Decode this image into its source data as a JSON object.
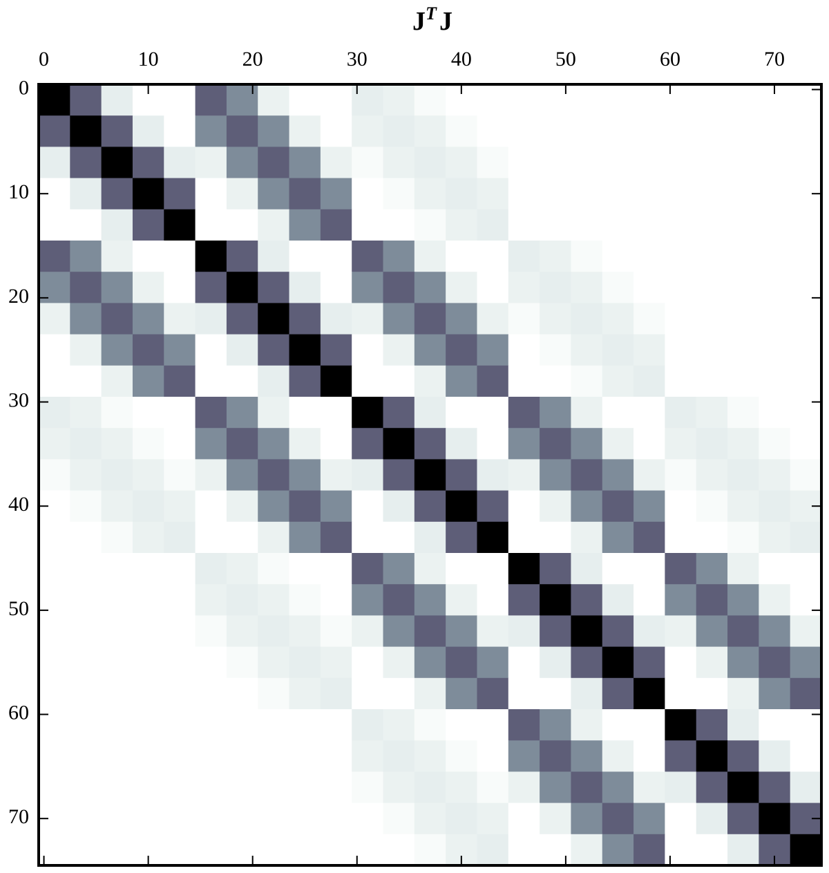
{
  "chart_data": {
    "type": "heatmap",
    "title_parts": [
      "J",
      "T",
      "J"
    ],
    "xlim": [
      -0.5,
      74.5
    ],
    "ylim": [
      -0.5,
      74.5
    ],
    "xticks": [
      0,
      10,
      20,
      30,
      40,
      50,
      60,
      70
    ],
    "yticks": [
      0,
      10,
      20,
      30,
      40,
      50,
      60,
      70
    ],
    "cell_size": 3,
    "zlim": [
      0,
      1
    ],
    "colormap": [
      "#ffffff",
      "#d6e3e2",
      "#7e8c9a",
      "#56536f",
      "#000000"
    ],
    "z": [
      [
        1,
        0.7,
        0.15,
        0,
        0,
        0.7,
        0.5,
        0.12,
        0,
        0,
        0.15,
        0.12,
        0.04,
        0,
        0,
        0,
        0,
        0,
        0,
        0,
        0,
        0,
        0,
        0,
        0
      ],
      [
        0.7,
        1,
        0.7,
        0.15,
        0,
        0.5,
        0.7,
        0.5,
        0.12,
        0,
        0.12,
        0.15,
        0.12,
        0.04,
        0,
        0,
        0,
        0,
        0,
        0,
        0,
        0,
        0,
        0,
        0
      ],
      [
        0.15,
        0.7,
        1,
        0.7,
        0.15,
        0.12,
        0.5,
        0.7,
        0.5,
        0.12,
        0.04,
        0.12,
        0.15,
        0.12,
        0.04,
        0,
        0,
        0,
        0,
        0,
        0,
        0,
        0,
        0,
        0
      ],
      [
        0,
        0.15,
        0.7,
        1,
        0.7,
        0,
        0.12,
        0.5,
        0.7,
        0.5,
        0,
        0.04,
        0.12,
        0.15,
        0.12,
        0,
        0,
        0,
        0,
        0,
        0,
        0,
        0,
        0,
        0
      ],
      [
        0,
        0,
        0.15,
        0.7,
        1,
        0,
        0,
        0.12,
        0.5,
        0.7,
        0,
        0,
        0.04,
        0.12,
        0.15,
        0,
        0,
        0,
        0,
        0,
        0,
        0,
        0,
        0,
        0
      ],
      [
        0.7,
        0.5,
        0.12,
        0,
        0,
        1,
        0.7,
        0.15,
        0,
        0,
        0.7,
        0.5,
        0.12,
        0,
        0,
        0.15,
        0.12,
        0.04,
        0,
        0,
        0,
        0,
        0,
        0,
        0
      ],
      [
        0.5,
        0.7,
        0.5,
        0.12,
        0,
        0.7,
        1,
        0.7,
        0.15,
        0,
        0.5,
        0.7,
        0.5,
        0.12,
        0,
        0.12,
        0.15,
        0.12,
        0.04,
        0,
        0,
        0,
        0,
        0,
        0
      ],
      [
        0.12,
        0.5,
        0.7,
        0.5,
        0.12,
        0.15,
        0.7,
        1,
        0.7,
        0.15,
        0.12,
        0.5,
        0.7,
        0.5,
        0.12,
        0.04,
        0.12,
        0.15,
        0.12,
        0.04,
        0,
        0,
        0,
        0,
        0
      ],
      [
        0,
        0.12,
        0.5,
        0.7,
        0.5,
        0,
        0.15,
        0.7,
        1,
        0.7,
        0,
        0.12,
        0.5,
        0.7,
        0.5,
        0,
        0.04,
        0.12,
        0.15,
        0.12,
        0,
        0,
        0,
        0,
        0
      ],
      [
        0,
        0,
        0.12,
        0.5,
        0.7,
        0,
        0,
        0.15,
        0.7,
        1,
        0,
        0,
        0.12,
        0.5,
        0.7,
        0,
        0,
        0.04,
        0.12,
        0.15,
        0,
        0,
        0,
        0,
        0
      ],
      [
        0.15,
        0.12,
        0.04,
        0,
        0,
        0.7,
        0.5,
        0.12,
        0,
        0,
        1,
        0.7,
        0.15,
        0,
        0,
        0.7,
        0.5,
        0.12,
        0,
        0,
        0.15,
        0.12,
        0.04,
        0,
        0
      ],
      [
        0.12,
        0.15,
        0.12,
        0.04,
        0,
        0.5,
        0.7,
        0.5,
        0.12,
        0,
        0.7,
        1,
        0.7,
        0.15,
        0,
        0.5,
        0.7,
        0.5,
        0.12,
        0,
        0.12,
        0.15,
        0.12,
        0.04,
        0
      ],
      [
        0.04,
        0.12,
        0.15,
        0.12,
        0.04,
        0.12,
        0.5,
        0.7,
        0.5,
        0.12,
        0.15,
        0.7,
        1,
        0.7,
        0.15,
        0.12,
        0.5,
        0.7,
        0.5,
        0.12,
        0.04,
        0.12,
        0.15,
        0.12,
        0.04
      ],
      [
        0,
        0.04,
        0.12,
        0.15,
        0.12,
        0,
        0.12,
        0.5,
        0.7,
        0.5,
        0,
        0.15,
        0.7,
        1,
        0.7,
        0,
        0.12,
        0.5,
        0.7,
        0.5,
        0,
        0.04,
        0.12,
        0.15,
        0.12
      ],
      [
        0,
        0,
        0.04,
        0.12,
        0.15,
        0,
        0,
        0.12,
        0.5,
        0.7,
        0,
        0,
        0.15,
        0.7,
        1,
        0,
        0,
        0.12,
        0.5,
        0.7,
        0,
        0,
        0.04,
        0.12,
        0.15
      ],
      [
        0,
        0,
        0,
        0,
        0,
        0.15,
        0.12,
        0.04,
        0,
        0,
        0.7,
        0.5,
        0.12,
        0,
        0,
        1,
        0.7,
        0.15,
        0,
        0,
        0.7,
        0.5,
        0.12,
        0,
        0
      ],
      [
        0,
        0,
        0,
        0,
        0,
        0.12,
        0.15,
        0.12,
        0.04,
        0,
        0.5,
        0.7,
        0.5,
        0.12,
        0,
        0.7,
        1,
        0.7,
        0.15,
        0,
        0.5,
        0.7,
        0.5,
        0.12,
        0
      ],
      [
        0,
        0,
        0,
        0,
        0,
        0.04,
        0.12,
        0.15,
        0.12,
        0.04,
        0.12,
        0.5,
        0.7,
        0.5,
        0.12,
        0.15,
        0.7,
        1,
        0.7,
        0.15,
        0.12,
        0.5,
        0.7,
        0.5,
        0.12
      ],
      [
        0,
        0,
        0,
        0,
        0,
        0,
        0.04,
        0.12,
        0.15,
        0.12,
        0,
        0.12,
        0.5,
        0.7,
        0.5,
        0,
        0.15,
        0.7,
        1,
        0.7,
        0,
        0.12,
        0.5,
        0.7,
        0.5
      ],
      [
        0,
        0,
        0,
        0,
        0,
        0,
        0,
        0.04,
        0.12,
        0.15,
        0,
        0,
        0.12,
        0.5,
        0.7,
        0,
        0,
        0.15,
        0.7,
        1,
        0,
        0,
        0.12,
        0.5,
        0.7
      ],
      [
        0,
        0,
        0,
        0,
        0,
        0,
        0,
        0,
        0,
        0,
        0.15,
        0.12,
        0.04,
        0,
        0,
        0.7,
        0.5,
        0.12,
        0,
        0,
        1,
        0.7,
        0.15,
        0,
        0
      ],
      [
        0,
        0,
        0,
        0,
        0,
        0,
        0,
        0,
        0,
        0,
        0.12,
        0.15,
        0.12,
        0.04,
        0,
        0.5,
        0.7,
        0.5,
        0.12,
        0,
        0.7,
        1,
        0.7,
        0.15,
        0
      ],
      [
        0,
        0,
        0,
        0,
        0,
        0,
        0,
        0,
        0,
        0,
        0.04,
        0.12,
        0.15,
        0.12,
        0.04,
        0.12,
        0.5,
        0.7,
        0.5,
        0.12,
        0.15,
        0.7,
        1,
        0.7,
        0.15
      ],
      [
        0,
        0,
        0,
        0,
        0,
        0,
        0,
        0,
        0,
        0,
        0,
        0.04,
        0.12,
        0.15,
        0.12,
        0,
        0.12,
        0.5,
        0.7,
        0.5,
        0,
        0.15,
        0.7,
        1,
        0.7
      ],
      [
        0,
        0,
        0,
        0,
        0,
        0,
        0,
        0,
        0,
        0,
        0,
        0,
        0.04,
        0.12,
        0.15,
        0,
        0,
        0.12,
        0.5,
        0.7,
        0,
        0,
        0.15,
        0.7,
        1
      ]
    ]
  }
}
